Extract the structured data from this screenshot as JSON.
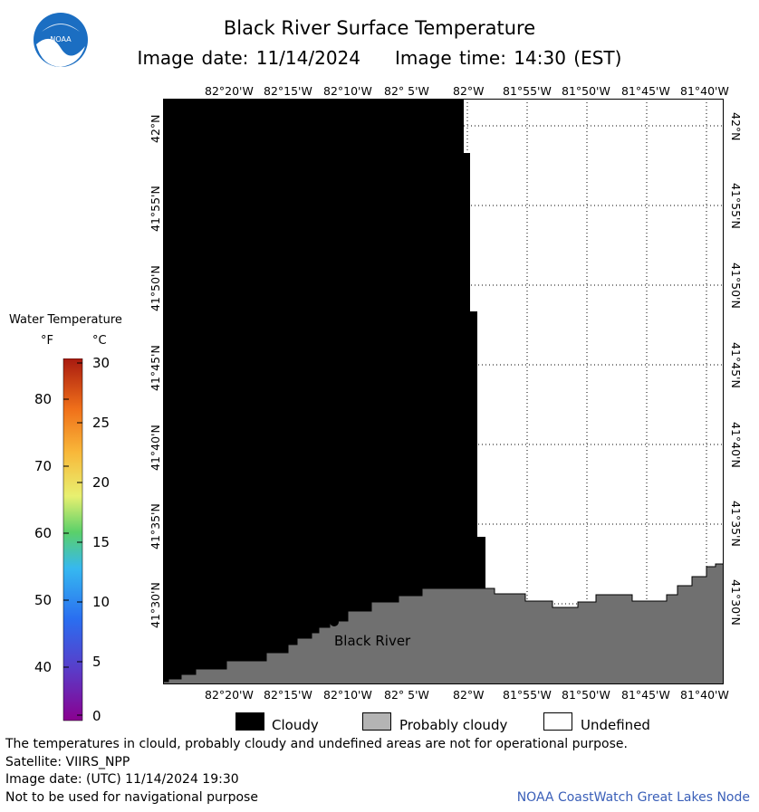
{
  "header": {
    "title": "Black River Surface Temperature",
    "image_date": "Image date: 11/14/2024",
    "image_time": "Image time: 14:30 (EST)",
    "logo_text": "NOAA"
  },
  "map": {
    "lon_labels": [
      "82°20'W",
      "82°15'W",
      "82°10'W",
      "82° 5'W",
      "82°W",
      "81°55'W",
      "81°50'W",
      "81°45'W",
      "81°40'W"
    ],
    "lat_labels": [
      "42°N",
      "41°55'N",
      "41°50'N",
      "41°45'N",
      "41°40'N",
      "41°35'N",
      "41°30'N"
    ],
    "place_label": "Black River",
    "classes": {
      "cloudy": "#000000",
      "probably_cloudy": "#707070",
      "undefined": "#ffffff"
    }
  },
  "colorbar": {
    "title": "Water Temperature",
    "unit_f": "°F",
    "unit_c": "°C",
    "f_labels": [
      "80",
      "70",
      "60",
      "50",
      "40"
    ],
    "c_labels": [
      "30",
      "25",
      "20",
      "15",
      "10",
      "5",
      "0"
    ]
  },
  "key": {
    "cloudy": "Cloudy",
    "probably_cloudy": "Probably cloudy",
    "undefined": "Undefined"
  },
  "footer": {
    "line1": "The temperatures in clould, probably cloudy and undefined areas are not for operational purpose.",
    "line2": "Satellite: VIIRS_NPP",
    "line3": "Image date: (UTC) 11/14/2024  19:30",
    "line4": "Not to be used for navigational purpose",
    "credit": "NOAA CoastWatch Great Lakes Node"
  }
}
